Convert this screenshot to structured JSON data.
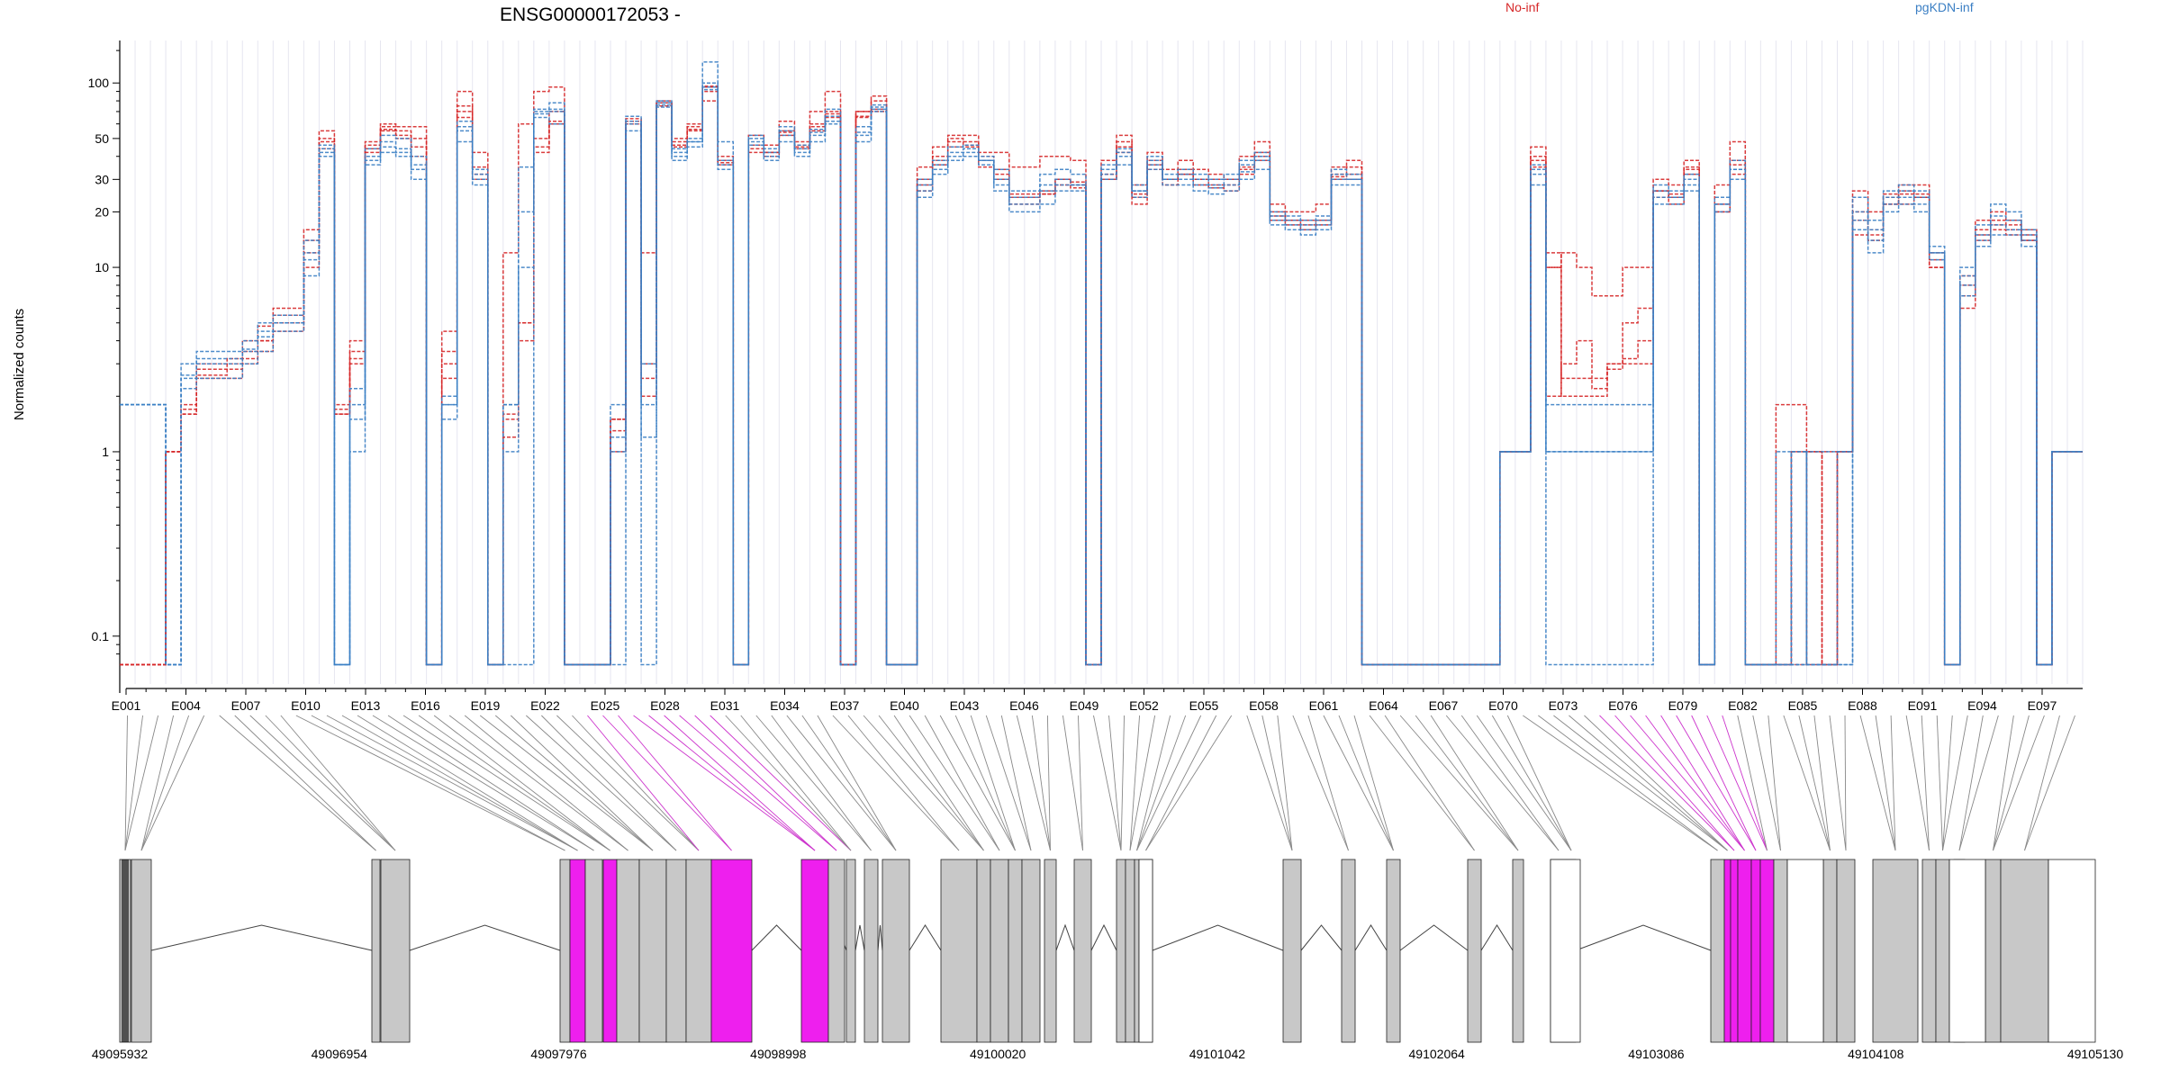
{
  "chart_data": {
    "type": "line",
    "title": "ENSG00000172053 -",
    "ylabel": "Normalized counts",
    "yscale": "log",
    "ylim": [
      0.07,
      160
    ],
    "yticks": [
      "0.1",
      "1",
      "10",
      "20",
      "30",
      "50",
      "100"
    ],
    "legend_placement": "top-right",
    "legend": [
      {
        "label": "No-inf",
        "color": "#d62728"
      },
      {
        "label": "pgKDN-inf",
        "color": "#3b7fc4"
      }
    ],
    "exon_labels": [
      "E001",
      "E004",
      "E007",
      "E010",
      "E013",
      "E016",
      "E019",
      "E022",
      "E025",
      "E028",
      "E031",
      "E034",
      "E037",
      "E040",
      "E043",
      "E046",
      "E049",
      "E052",
      "E055",
      "E058",
      "E061",
      "E064",
      "E067",
      "E070",
      "E073",
      "E076",
      "E079",
      "E082",
      "E085",
      "E088",
      "E091",
      "E094",
      "E097"
    ],
    "genomic_coords": [
      "49095932",
      "49096954",
      "49097976",
      "49098998",
      "49100020",
      "49101042",
      "49102064",
      "49103086",
      "49104108",
      "49105130"
    ],
    "series": [
      {
        "name": "No-inf",
        "group": "No-inf",
        "values": [
          0.07,
          0.07,
          0.07,
          1,
          1.8,
          3,
          3,
          3.2,
          4,
          4.8,
          5.5,
          5.5,
          10,
          44,
          1.8,
          4,
          42,
          55,
          50,
          40,
          0.07,
          3.5,
          65,
          30,
          0.07,
          1.5,
          5,
          42,
          60,
          0.07,
          0.07,
          0.07,
          1.5,
          60,
          2.5,
          75,
          48,
          55,
          95,
          37,
          0.07,
          42,
          42,
          52,
          45,
          55,
          65,
          0.07,
          65,
          70,
          0.07,
          0.07,
          26,
          38,
          45,
          45,
          35,
          34,
          25,
          25,
          25,
          30,
          28,
          0.07,
          30,
          42,
          22,
          34,
          28,
          32,
          28,
          27,
          26,
          32,
          38,
          18,
          17,
          16,
          17,
          30,
          30,
          0.07,
          0.07,
          0.07,
          0.07,
          0.07,
          0.07,
          0.07,
          0.07,
          0.07,
          1,
          1,
          35,
          10,
          2,
          2,
          2,
          3,
          3.2,
          4,
          26,
          22,
          32,
          0.07,
          20,
          32,
          0.07,
          0.07,
          0.07,
          1,
          0.07,
          0.07,
          1,
          15,
          14,
          22,
          26,
          25,
          10,
          0.07,
          7,
          14,
          16,
          15,
          14,
          0.07,
          1,
          1
        ]
      },
      {
        "name": "No-inf",
        "group": "No-inf",
        "values": [
          0.07,
          0.07,
          0.07,
          1,
          1.6,
          2.5,
          2.5,
          2.5,
          3,
          3.5,
          4.5,
          4.5,
          14,
          48,
          1.6,
          3,
          46,
          58,
          55,
          50,
          0.07,
          2.5,
          70,
          35,
          0.07,
          1.6,
          4,
          50,
          70,
          0.07,
          0.07,
          0.07,
          1,
          62,
          2,
          78,
          50,
          60,
          80,
          38,
          0.07,
          44,
          40,
          55,
          44,
          60,
          70,
          0.07,
          70,
          80,
          0.07,
          0.07,
          30,
          40,
          50,
          48,
          40,
          30,
          22,
          22,
          25,
          28,
          27,
          0.07,
          32,
          48,
          25,
          38,
          30,
          32,
          30,
          30,
          30,
          35,
          42,
          20,
          18,
          18,
          18,
          32,
          35,
          0.07,
          0.07,
          0.07,
          0.07,
          0.07,
          0.07,
          0.07,
          0.07,
          0.07,
          1,
          1,
          38,
          12,
          2.5,
          2.5,
          2.2,
          3,
          3,
          3,
          24,
          25,
          35,
          0.07,
          22,
          38,
          0.07,
          0.07,
          0.07,
          1,
          1,
          1,
          1,
          18,
          16,
          24,
          22,
          24,
          11,
          0.07,
          6,
          16,
          18,
          17,
          15,
          0.07,
          1,
          1
        ]
      },
      {
        "name": "No-inf",
        "group": "No-inf",
        "values": [
          0.07,
          0.07,
          0.07,
          1,
          1.7,
          2.8,
          2.8,
          3,
          3.5,
          4,
          6,
          6,
          16,
          55,
          1.7,
          3.5,
          48,
          60,
          58,
          58,
          0.07,
          4.5,
          90,
          42,
          0.07,
          12,
          60,
          90,
          95,
          0.07,
          0.07,
          0.07,
          1.5,
          60,
          12,
          78,
          45,
          58,
          96,
          40,
          0.07,
          52,
          46,
          62,
          48,
          70,
          90,
          0.07,
          70,
          85,
          0.07,
          0.07,
          35,
          45,
          52,
          52,
          42,
          42,
          35,
          35,
          40,
          40,
          38,
          0.07,
          38,
          52,
          28,
          42,
          34,
          38,
          34,
          32,
          30,
          40,
          48,
          22,
          20,
          20,
          22,
          35,
          38,
          0.07,
          0.07,
          0.07,
          0.07,
          0.07,
          0.07,
          0.07,
          0.07,
          0.07,
          1,
          1,
          45,
          10,
          12,
          10,
          7,
          7,
          10,
          10,
          30,
          28,
          38,
          0.07,
          28,
          48,
          0.07,
          0.07,
          1.8,
          1.8,
          1,
          0.07,
          1,
          26,
          20,
          25,
          28,
          28,
          12,
          0.07,
          9,
          18,
          20,
          18,
          16,
          0.07,
          1,
          1
        ]
      },
      {
        "name": "No-inf",
        "group": "No-inf",
        "values": [
          0.07,
          0.07,
          0.07,
          1,
          1.6,
          2.6,
          2.6,
          2.8,
          3.2,
          4,
          5,
          5,
          12,
          50,
          1.6,
          3.2,
          44,
          56,
          52,
          45,
          0.07,
          3,
          75,
          32,
          0.07,
          1.2,
          5,
          45,
          62,
          0.07,
          0.07,
          0.07,
          1.3,
          64,
          3,
          80,
          46,
          56,
          90,
          36,
          0.07,
          46,
          42,
          54,
          46,
          58,
          68,
          0.07,
          66,
          72,
          0.07,
          0.07,
          28,
          36,
          48,
          46,
          38,
          32,
          24,
          24,
          26,
          30,
          29,
          0.07,
          30,
          45,
          24,
          36,
          30,
          34,
          30,
          28,
          28,
          34,
          40,
          19,
          18,
          17,
          18,
          31,
          32,
          0.07,
          0.07,
          0.07,
          0.07,
          0.07,
          0.07,
          0.07,
          0.07,
          0.07,
          1,
          1,
          40,
          2,
          3,
          4,
          2.5,
          2.8,
          5,
          6,
          26,
          24,
          34,
          0.07,
          20,
          36,
          0.07,
          0.07,
          0.07,
          0.07,
          1,
          0.07,
          1,
          20,
          15,
          22,
          25,
          24,
          10,
          0.07,
          8,
          15,
          17,
          16,
          14,
          0.07,
          1,
          1
        ]
      },
      {
        "name": "pgKDN-inf",
        "group": "pgKDN-inf",
        "values": [
          1.8,
          1.8,
          1.8,
          0.07,
          2.5,
          3,
          3,
          3,
          3.5,
          4.5,
          5,
          5,
          12,
          40,
          0.07,
          1,
          38,
          45,
          42,
          36,
          0.07,
          1.8,
          55,
          30,
          0.07,
          1.8,
          35,
          70,
          72,
          0.07,
          0.07,
          0.07,
          1,
          60,
          1.8,
          78,
          40,
          48,
          95,
          36,
          0.07,
          46,
          40,
          52,
          42,
          52,
          62,
          0.07,
          52,
          72,
          0.07,
          0.07,
          26,
          34,
          40,
          44,
          38,
          28,
          22,
          22,
          28,
          30,
          28,
          0.07,
          32,
          40,
          26,
          36,
          30,
          30,
          28,
          27,
          28,
          33,
          38,
          18,
          17,
          16,
          17,
          30,
          30,
          0.07,
          0.07,
          0.07,
          0.07,
          0.07,
          0.07,
          0.07,
          0.07,
          0.07,
          1,
          1,
          32,
          1.8,
          1.8,
          1.8,
          1.8,
          1.8,
          1.8,
          1.8,
          24,
          24,
          28,
          0.07,
          22,
          34,
          0.07,
          0.07,
          0.07,
          1,
          0.07,
          0.07,
          0.07,
          18,
          14,
          22,
          24,
          22,
          12,
          0.07,
          8,
          14,
          17,
          16,
          14,
          0.07,
          1,
          1
        ]
      },
      {
        "name": "pgKDN-inf",
        "group": "pgKDN-inf",
        "values": [
          1.8,
          1.8,
          1.8,
          0.07,
          2.2,
          2.5,
          2.5,
          2.5,
          3,
          3.5,
          4.5,
          4.5,
          9,
          42,
          0.07,
          1.8,
          36,
          42,
          40,
          30,
          0.07,
          1.8,
          48,
          28,
          0.07,
          0.07,
          0.07,
          65,
          60,
          0.07,
          0.07,
          0.07,
          0.07,
          55,
          0.07,
          74,
          38,
          45,
          92,
          34,
          0.07,
          48,
          38,
          48,
          40,
          48,
          60,
          0.07,
          48,
          70,
          0.07,
          0.07,
          24,
          32,
          38,
          40,
          36,
          26,
          20,
          20,
          22,
          26,
          26,
          0.07,
          30,
          36,
          24,
          34,
          28,
          28,
          26,
          25,
          26,
          30,
          34,
          17,
          16,
          15,
          16,
          28,
          28,
          0.07,
          0.07,
          0.07,
          0.07,
          0.07,
          0.07,
          0.07,
          0.07,
          0.07,
          1,
          1,
          28,
          0.07,
          0.07,
          0.07,
          0.07,
          0.07,
          0.07,
          0.07,
          22,
          22,
          26,
          0.07,
          20,
          30,
          0.07,
          0.07,
          0.07,
          0.07,
          0.07,
          0.07,
          0.07,
          16,
          12,
          20,
          22,
          20,
          11,
          0.07,
          7,
          13,
          15,
          15,
          13,
          0.07,
          1,
          1
        ]
      },
      {
        "name": "pgKDN-inf",
        "group": "pgKDN-inf",
        "values": [
          1.8,
          1.8,
          1.8,
          0.07,
          3,
          3.5,
          3.5,
          3.5,
          4,
          5,
          5.5,
          5.5,
          14,
          46,
          0.07,
          2.2,
          44,
          52,
          50,
          40,
          0.07,
          2,
          62,
          34,
          0.07,
          1.8,
          20,
          72,
          78,
          0.07,
          0.07,
          0.07,
          1.8,
          66,
          3,
          80,
          44,
          50,
          130,
          48,
          0.07,
          52,
          44,
          58,
          46,
          56,
          72,
          0.07,
          58,
          76,
          0.07,
          0.07,
          30,
          38,
          45,
          46,
          40,
          34,
          26,
          26,
          32,
          34,
          32,
          0.07,
          36,
          44,
          28,
          40,
          32,
          34,
          32,
          30,
          32,
          38,
          42,
          20,
          19,
          18,
          19,
          34,
          32,
          0.07,
          0.07,
          0.07,
          0.07,
          0.07,
          0.07,
          0.07,
          0.07,
          0.07,
          1,
          1,
          36,
          1,
          1,
          1,
          1,
          1,
          1,
          1,
          28,
          26,
          32,
          0.07,
          24,
          38,
          0.07,
          0.07,
          1,
          0.07,
          1,
          1,
          1,
          24,
          18,
          26,
          28,
          26,
          13,
          0.07,
          10,
          17,
          22,
          20,
          16,
          0.07,
          1,
          1
        ]
      },
      {
        "name": "pgKDN-inf",
        "group": "pgKDN-inf",
        "values": [
          1.8,
          1.8,
          1.8,
          0.07,
          2.6,
          3.2,
          3.2,
          3.2,
          3.6,
          4.2,
          5,
          5,
          11,
          44,
          0.07,
          1.5,
          40,
          48,
          44,
          34,
          0.07,
          1.5,
          58,
          32,
          0.07,
          1,
          10,
          68,
          70,
          0.07,
          0.07,
          0.07,
          1.2,
          62,
          1.2,
          76,
          42,
          48,
          100,
          38,
          0.07,
          50,
          42,
          55,
          44,
          54,
          66,
          0.07,
          54,
          74,
          0.07,
          0.07,
          28,
          36,
          42,
          42,
          38,
          30,
          24,
          24,
          26,
          28,
          28,
          0.07,
          34,
          42,
          26,
          38,
          30,
          32,
          30,
          28,
          30,
          36,
          40,
          19,
          18,
          17,
          18,
          32,
          30,
          0.07,
          0.07,
          0.07,
          0.07,
          0.07,
          0.07,
          0.07,
          0.07,
          0.07,
          1,
          1,
          34,
          1,
          1,
          1,
          1,
          1,
          1,
          1,
          26,
          24,
          30,
          0.07,
          22,
          34,
          0.07,
          0.07,
          0.07,
          1,
          0.07,
          0.07,
          1,
          20,
          16,
          24,
          26,
          24,
          12,
          0.07,
          9,
          15,
          19,
          18,
          15,
          0.07,
          1,
          1
        ]
      }
    ]
  },
  "gene_model": {
    "exon_fill": "#c8c8c8",
    "highlight_fill": "#ee1fee",
    "line_color": "#444444"
  }
}
